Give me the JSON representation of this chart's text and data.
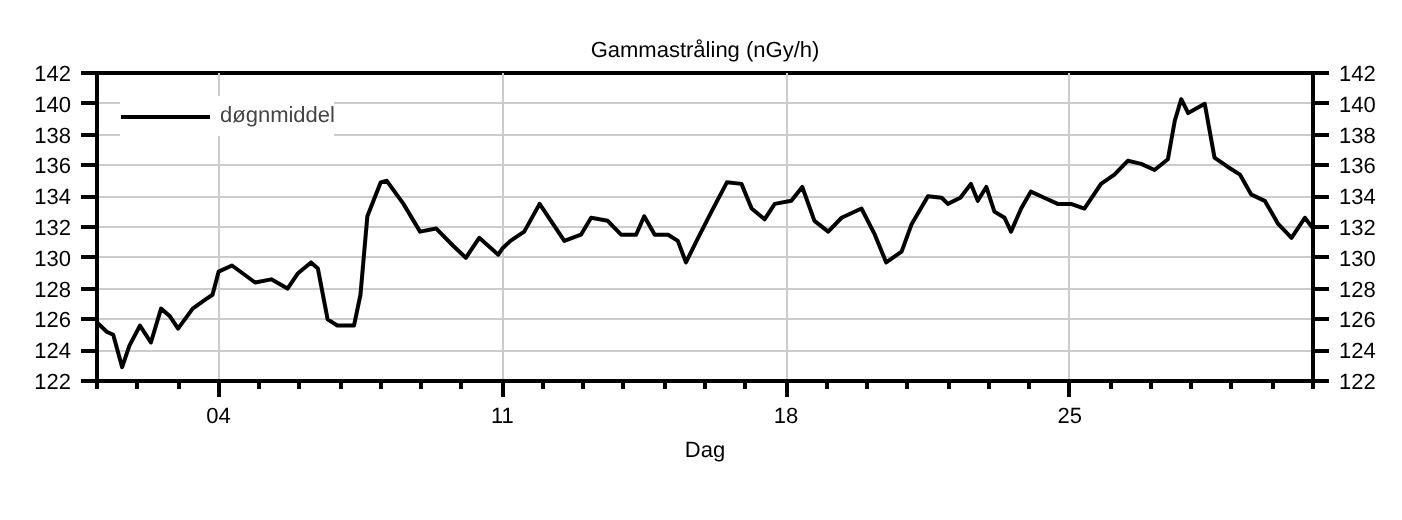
{
  "chart_data": {
    "type": "line",
    "title": "Gammastråling (nGy/h)",
    "xlabel": "Dag",
    "x": [
      1.0,
      1.24,
      1.4,
      1.62,
      1.8,
      2.06,
      2.33,
      2.58,
      2.8,
      3.0,
      3.36,
      3.68,
      3.85,
      4.0,
      4.33,
      4.9,
      5.3,
      5.7,
      5.96,
      6.28,
      6.45,
      6.69,
      6.93,
      7.34,
      7.5,
      7.67,
      8.0,
      8.15,
      8.56,
      8.97,
      9.37,
      9.78,
      10.1,
      10.43,
      10.9,
      11.0,
      11.2,
      11.54,
      11.92,
      12.2,
      12.53,
      12.94,
      13.19,
      13.6,
      13.93,
      14.3,
      14.5,
      14.76,
      15.09,
      15.33,
      15.53,
      15.83,
      16.16,
      16.54,
      16.9,
      17.15,
      17.47,
      17.72,
      18.13,
      18.4,
      18.7,
      19.04,
      19.37,
      19.86,
      20.19,
      20.47,
      20.85,
      21.1,
      21.5,
      21.84,
      21.99,
      22.3,
      22.56,
      22.73,
      22.94,
      23.14,
      23.39,
      23.55,
      23.8,
      24.04,
      24.37,
      24.7,
      25.03,
      25.36,
      25.77,
      26.1,
      26.43,
      26.76,
      27.09,
      27.42,
      27.59,
      27.75,
      27.92,
      28.33,
      28.57,
      28.9,
      29.2,
      29.48,
      29.81,
      30.14,
      30.47,
      30.8,
      31.0
    ],
    "series": [
      {
        "name": "døgnmiddel",
        "color": "#000000",
        "values": [
          125.8,
          125.2,
          125.0,
          122.9,
          124.3,
          125.6,
          124.5,
          126.7,
          126.2,
          125.4,
          126.7,
          127.3,
          127.6,
          129.1,
          129.5,
          128.4,
          128.6,
          128.0,
          129.0,
          129.7,
          129.3,
          126.0,
          125.6,
          125.6,
          127.6,
          132.7,
          134.9,
          135.0,
          133.5,
          131.7,
          131.9,
          130.8,
          130.0,
          131.3,
          130.2,
          130.6,
          131.1,
          131.7,
          133.5,
          132.4,
          131.1,
          131.5,
          132.6,
          132.4,
          131.5,
          131.5,
          132.7,
          131.5,
          131.5,
          131.1,
          129.7,
          131.3,
          133.0,
          134.9,
          134.8,
          133.2,
          132.5,
          133.5,
          133.7,
          134.6,
          132.4,
          131.7,
          132.6,
          133.2,
          131.5,
          129.7,
          130.4,
          132.2,
          134.0,
          133.9,
          133.5,
          133.9,
          134.8,
          133.7,
          134.6,
          133.0,
          132.6,
          131.7,
          133.2,
          134.3,
          133.9,
          133.5,
          133.5,
          133.2,
          134.8,
          135.4,
          136.3,
          136.1,
          135.7,
          136.4,
          138.9,
          140.3,
          139.4,
          140.0,
          136.5,
          135.9,
          135.4,
          134.1,
          133.7,
          132.2,
          131.3,
          132.6,
          131.9
        ]
      }
    ],
    "xlim": [
      1,
      31
    ],
    "xticks": [
      {
        "value": 4,
        "label": "04"
      },
      {
        "value": 11,
        "label": "11"
      },
      {
        "value": 18,
        "label": "18"
      },
      {
        "value": 25,
        "label": "25"
      }
    ],
    "ylim": [
      122,
      142
    ],
    "yticks": [
      122,
      124,
      126,
      128,
      130,
      132,
      134,
      136,
      138,
      140,
      142
    ],
    "y2lim": [
      122,
      142
    ],
    "y2ticks": [
      122,
      124,
      126,
      128,
      130,
      132,
      134,
      136,
      138,
      140,
      142
    ],
    "grid": true,
    "legend": "top left",
    "marker": "none",
    "line_style": "solid"
  }
}
